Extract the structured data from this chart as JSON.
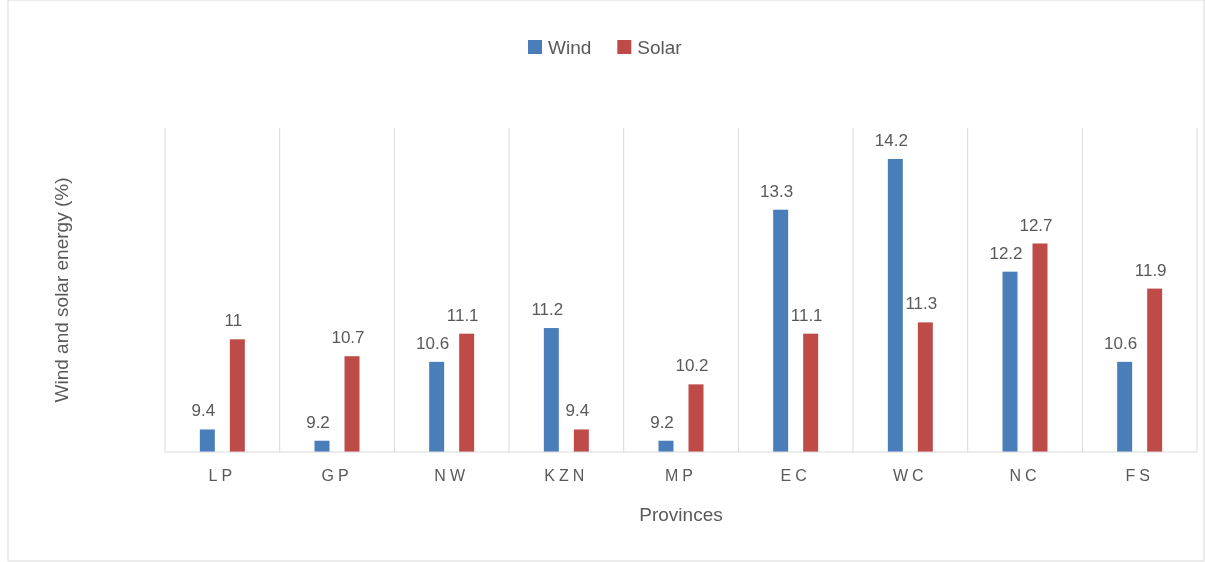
{
  "chart_data": {
    "type": "bar",
    "xlabel": "Provinces",
    "ylabel": "Wind and solar energy (%)",
    "categories": [
      "LP",
      "GP",
      "NW",
      "KZN",
      "MP",
      "EC",
      "WC",
      "NC",
      "FS"
    ],
    "series": [
      {
        "name": "Wind",
        "color": "#4a7ebb",
        "values": [
          9.4,
          9.2,
          10.6,
          11.2,
          9.2,
          13.3,
          14.2,
          12.2,
          10.6
        ]
      },
      {
        "name": "Solar",
        "color": "#be4b48",
        "values": [
          11,
          10.7,
          11.1,
          9.4,
          10.2,
          11.1,
          11.3,
          12.7,
          11.9
        ]
      }
    ],
    "ylim": [
      9,
      14.75
    ],
    "tick_labels": "x",
    "data_labels": true,
    "grid": "x",
    "legend": "top"
  }
}
